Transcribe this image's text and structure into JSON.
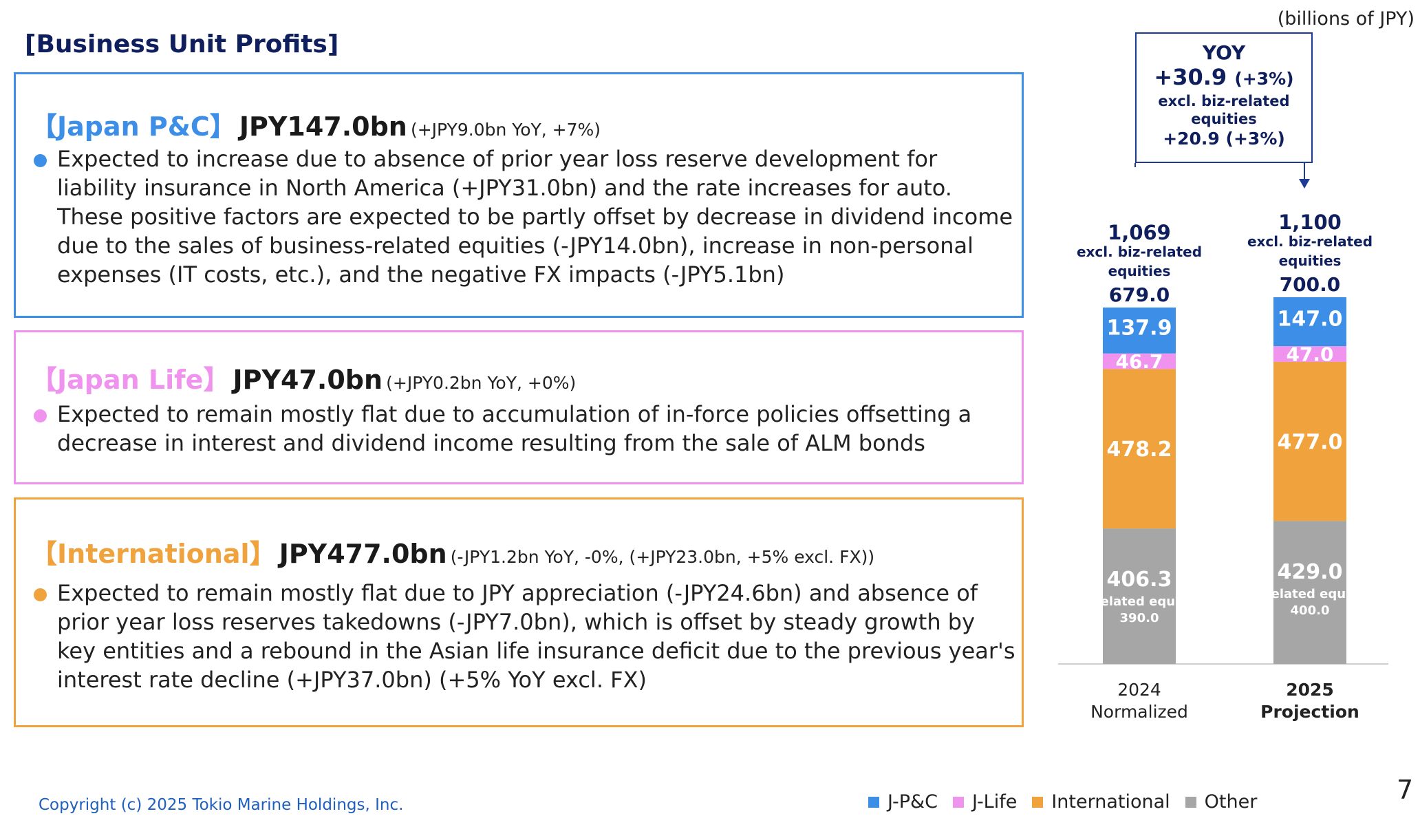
{
  "page_title": "[Business Unit Profits]",
  "units_label": "(billions of JPY)",
  "units": [
    {
      "id": "pc",
      "name": "【Japan P&C】",
      "amount": "JPY147.0bn",
      "change": "(+JPY9.0bn YoY, +7%)",
      "description": "Expected to increase due to absence of prior year loss reserve development for liability insurance in North America (+JPY31.0bn) and the rate increases for auto. These positive factors are expected to be partly offset by decrease in dividend income due to the sales of business-related equities (-JPY14.0bn), increase in non-personal expenses (IT costs, etc.), and the negative FX impacts (-JPY5.1bn)",
      "color": "#3d8ee6"
    },
    {
      "id": "life",
      "name": "【Japan Life】",
      "amount": "JPY47.0bn",
      "change": "(+JPY0.2bn YoY, +0%)",
      "description": "Expected to remain mostly flat due to accumulation of in-force policies offsetting a decrease in interest and dividend income resulting from the sale of ALM bonds",
      "color": "#ef93ee"
    },
    {
      "id": "intl",
      "name": "【International】",
      "amount": "JPY477.0bn",
      "change": "(-JPY1.2bn YoY, -0%, (+JPY23.0bn, +5% excl. FX))",
      "description": "Expected to remain mostly flat due to JPY appreciation (-JPY24.6bn) and absence of prior year loss reserves takedowns (-JPY7.0bn), which is offset by steady growth by key entities and a rebound in the Asian life insurance deficit due to the previous year's interest rate decline (+JPY37.0bn)  (+5% YoY excl. FX)",
      "color": "#f0a23c"
    }
  ],
  "yoy": {
    "title": "YOY",
    "value": "+30.9",
    "pct": "(+3%)",
    "excl_label": "excl. biz-related equities",
    "excl_value": "+20.9",
    "excl_pct": "(+3%)"
  },
  "chart_data": {
    "type": "bar",
    "stacked": true,
    "categories": [
      {
        "line1": "2024",
        "line2": "Normalized",
        "bold": false
      },
      {
        "line1": "2025",
        "line2": "Projection",
        "bold": true
      }
    ],
    "series": [
      {
        "name": "Other",
        "color": "#a6a6a6",
        "values": [
          406.3,
          429.0
        ],
        "labels": [
          "406.3",
          "429.0"
        ]
      },
      {
        "name": "International",
        "color": "#f0a23c",
        "values": [
          478.2,
          477.0
        ],
        "labels": [
          "478.2",
          "477.0"
        ]
      },
      {
        "name": "J-Life",
        "color": "#ef93ee",
        "values": [
          46.7,
          47.0
        ],
        "labels": [
          "46.7",
          "47.0"
        ]
      },
      {
        "name": "J-P&C",
        "color": "#3d8ee6",
        "values": [
          137.9,
          147.0
        ],
        "labels": [
          "137.9",
          "147.0"
        ]
      }
    ],
    "other_notes": [
      {
        "label": "Biz-related equities:",
        "value": "390.0"
      },
      {
        "label": "Biz-related equities:",
        "value": "400.0"
      }
    ],
    "totals": [
      {
        "total": "1,069",
        "excl_label": "excl. biz-related equities",
        "excl_value": "679.0"
      },
      {
        "total": "1,100",
        "excl_label": "excl. biz-related equities",
        "excl_value": "700.0"
      }
    ],
    "legend": [
      "J-P&C",
      "J-Life",
      "International",
      "Other"
    ],
    "legend_colors": [
      "#3d8ee6",
      "#ef93ee",
      "#f0a23c",
      "#a6a6a6"
    ],
    "ylim": [
      0,
      1100
    ]
  },
  "footer": {
    "copyright": "Copyright (c) 2025 Tokio Marine Holdings, Inc.",
    "page_number": "7"
  }
}
